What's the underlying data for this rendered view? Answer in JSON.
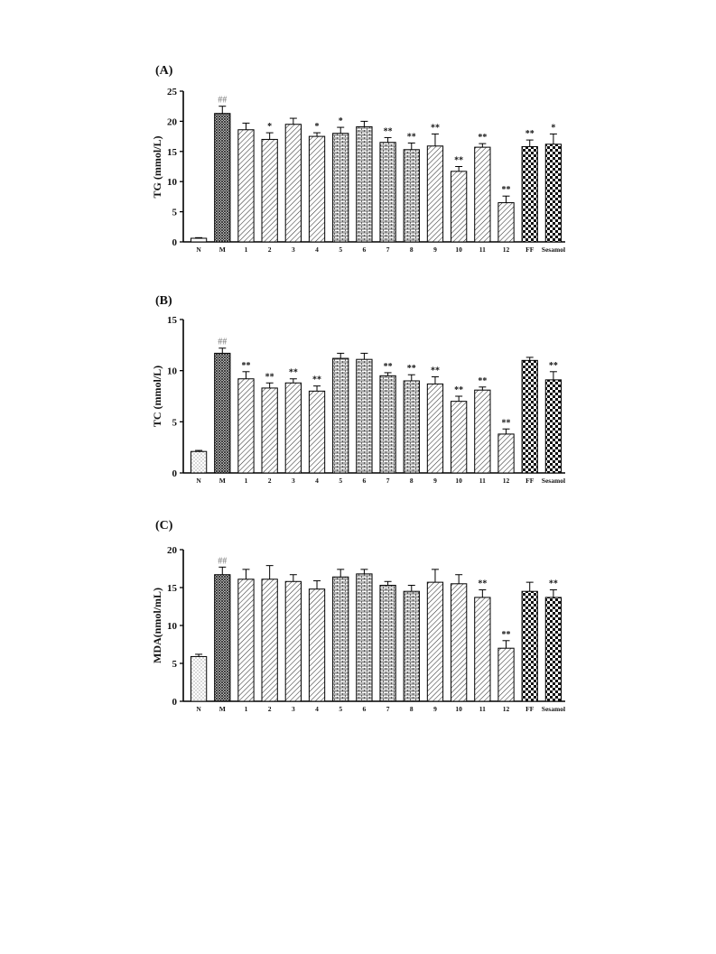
{
  "chart_data": [
    {
      "type": "bar",
      "panel_label": "(A)",
      "ylabel": "TG (mmol/L)",
      "ylim": [
        0,
        25
      ],
      "yticks": [
        0,
        5,
        10,
        15,
        20,
        25
      ],
      "categories": [
        "N",
        "M",
        "1",
        "2",
        "3",
        "4",
        "5",
        "6",
        "7",
        "8",
        "9",
        "10",
        "11",
        "12",
        "FF",
        "Sesamol"
      ],
      "values": [
        0.6,
        21.3,
        18.6,
        17.0,
        19.5,
        17.5,
        18.0,
        19.1,
        16.5,
        15.3,
        15.9,
        11.7,
        15.7,
        6.5,
        15.8,
        16.2
      ],
      "errors": [
        0.1,
        1.2,
        1.1,
        1.1,
        1.0,
        0.6,
        1.0,
        0.9,
        0.8,
        1.1,
        2.0,
        0.8,
        0.6,
        1.1,
        1.1,
        1.7
      ],
      "annotations": [
        "",
        "##",
        "",
        "*",
        "",
        "*",
        "*",
        "",
        "**",
        "**",
        "**",
        "**",
        "**",
        "**",
        "**",
        "*"
      ],
      "patterns": [
        "white",
        "crosshatch",
        "diag",
        "diag",
        "diag",
        "diag",
        "brick",
        "brick",
        "brick",
        "brick",
        "diag",
        "diag",
        "diag",
        "diag",
        "checker",
        "checker"
      ]
    },
    {
      "type": "bar",
      "panel_label": "(B)",
      "ylabel": "TC (mmol/L)",
      "ylim": [
        0,
        15
      ],
      "yticks": [
        0,
        5,
        10,
        15
      ],
      "categories": [
        "N",
        "M",
        "1",
        "2",
        "3",
        "4",
        "5",
        "6",
        "7",
        "8",
        "9",
        "10",
        "11",
        "12",
        "FF",
        "Sesamol"
      ],
      "values": [
        2.1,
        11.7,
        9.2,
        8.3,
        8.8,
        8.0,
        11.2,
        11.1,
        9.5,
        9.0,
        8.7,
        7.0,
        8.1,
        3.8,
        11.0,
        9.1
      ],
      "errors": [
        0.1,
        0.5,
        0.7,
        0.5,
        0.4,
        0.5,
        0.5,
        0.6,
        0.3,
        0.6,
        0.7,
        0.5,
        0.3,
        0.5,
        0.3,
        0.8
      ],
      "annotations": [
        "",
        "##",
        "**",
        "**",
        "**",
        "**",
        "",
        "",
        "**",
        "**",
        "**",
        "**",
        "**",
        "**",
        "",
        "**"
      ],
      "patterns": [
        "dots",
        "crosshatch",
        "diag",
        "diag",
        "diag",
        "diag",
        "brick",
        "brick",
        "brick",
        "brick",
        "diag",
        "diag",
        "diag",
        "diag",
        "checker",
        "checker"
      ]
    },
    {
      "type": "bar",
      "panel_label": "(C)",
      "ylabel": "MDA(nmol/mL)",
      "ylim": [
        0,
        20
      ],
      "yticks": [
        0,
        5,
        10,
        15,
        20
      ],
      "categories": [
        "N",
        "M",
        "1",
        "2",
        "3",
        "4",
        "5",
        "6",
        "7",
        "8",
        "9",
        "10",
        "11",
        "12",
        "FF",
        "Sesamol"
      ],
      "values": [
        5.9,
        16.7,
        16.1,
        16.1,
        15.8,
        14.8,
        16.4,
        16.8,
        15.3,
        14.5,
        15.7,
        15.5,
        13.7,
        7.0,
        14.5,
        13.7
      ],
      "errors": [
        0.3,
        1.0,
        1.3,
        1.8,
        0.9,
        1.1,
        1.0,
        0.6,
        0.5,
        0.8,
        1.7,
        1.2,
        1.0,
        1.0,
        1.2,
        1.0
      ],
      "annotations": [
        "",
        "##",
        "",
        "",
        "",
        "",
        "",
        "",
        "",
        "",
        "",
        "",
        "**",
        "**",
        "",
        "**"
      ],
      "patterns": [
        "dots",
        "crosshatch",
        "diag",
        "diag",
        "diag",
        "diag",
        "brick",
        "brick",
        "brick",
        "brick",
        "diag",
        "diag",
        "diag",
        "diag",
        "checker",
        "checker"
      ]
    }
  ]
}
